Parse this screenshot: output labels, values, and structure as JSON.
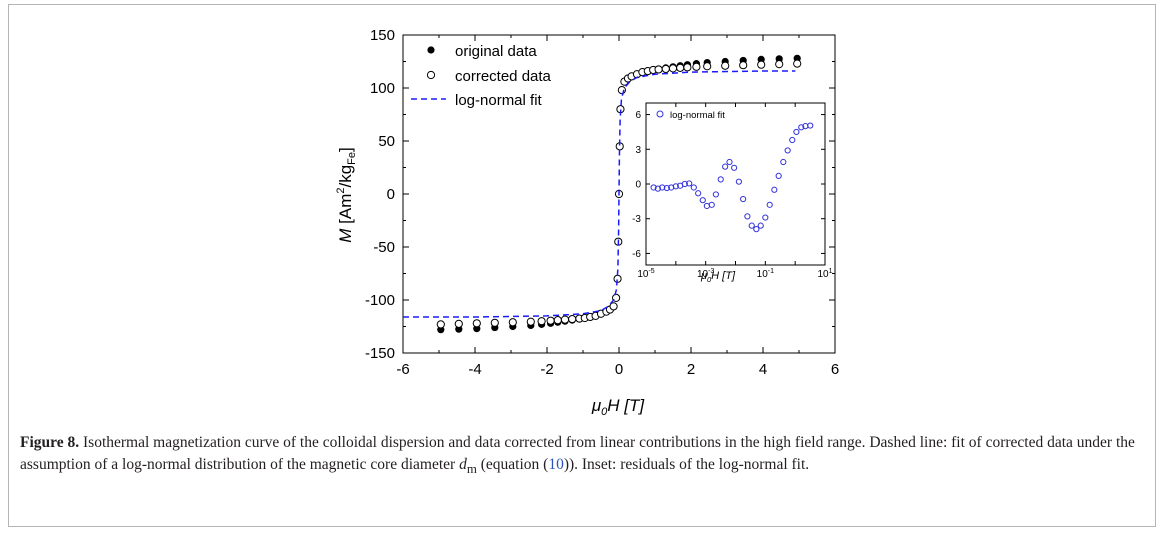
{
  "chart_data": {
    "type": "scatter",
    "xlim": [
      -6,
      6
    ],
    "ylim": [
      -150,
      150
    ],
    "xticks": [
      "-6",
      "-4",
      "-2",
      "0",
      "2",
      "4",
      "6"
    ],
    "yticks": [
      "-150",
      "-100",
      "-50",
      "0",
      "50",
      "100",
      "150"
    ],
    "xlabel": {
      "sym": "μ",
      "sub": "0",
      "rest": "H [T]"
    },
    "ylabel": {
      "sym": "M",
      "rest1": " [Am",
      "sup": "2",
      "rest2": "/kg",
      "sub": "Fe",
      "rest3": "]"
    },
    "legend_position": "top-left",
    "series": [
      {
        "name": "original data",
        "marker": "filled-circle",
        "color": "#000000",
        "x": [
          -4.95,
          -4.45,
          -3.95,
          -3.45,
          -2.95,
          -2.45,
          -2.15,
          -1.9,
          -1.7,
          -1.5,
          -1.3,
          -1.1,
          -0.95,
          -0.8,
          -0.65,
          -0.5,
          -0.35,
          -0.25,
          -0.15,
          -0.08,
          -0.04,
          -0.02,
          0,
          0.02,
          0.04,
          0.08,
          0.15,
          0.25,
          0.35,
          0.5,
          0.65,
          0.8,
          0.95,
          1.1,
          1.3,
          1.5,
          1.7,
          1.9,
          2.15,
          2.45,
          2.95,
          3.45,
          3.95,
          4.45,
          4.95
        ],
        "y": [
          -128,
          -127.5,
          -127,
          -126,
          -125,
          -124,
          -123,
          -122,
          -121,
          -120,
          -119,
          -118,
          -117,
          -116,
          -115,
          -113,
          -111,
          -109,
          -106,
          -98,
          -80,
          -45,
          0,
          45,
          80,
          98,
          106,
          109,
          111,
          113,
          115,
          116,
          117,
          118,
          119,
          120,
          121,
          122,
          123,
          124,
          125,
          126,
          127,
          127.5,
          128
        ]
      },
      {
        "name": "corrected data",
        "marker": "open-circle",
        "color": "#000000",
        "x": [
          -4.95,
          -4.45,
          -3.95,
          -3.45,
          -2.95,
          -2.45,
          -2.15,
          -1.9,
          -1.7,
          -1.5,
          -1.3,
          -1.1,
          -0.95,
          -0.8,
          -0.65,
          -0.5,
          -0.35,
          -0.25,
          -0.15,
          -0.08,
          -0.04,
          -0.02,
          0,
          0.02,
          0.04,
          0.08,
          0.15,
          0.25,
          0.35,
          0.5,
          0.65,
          0.8,
          0.95,
          1.1,
          1.3,
          1.5,
          1.7,
          1.9,
          2.15,
          2.45,
          2.95,
          3.45,
          3.95,
          4.45,
          4.95
        ],
        "y": [
          -123,
          -122.5,
          -122,
          -121.5,
          -121,
          -120.5,
          -120,
          -119.5,
          -119,
          -118.5,
          -118,
          -117.5,
          -117,
          -116,
          -115,
          -113,
          -111,
          -109,
          -106,
          -98,
          -80,
          -45,
          0,
          45,
          80,
          98,
          106,
          109,
          111,
          113,
          115,
          116,
          117,
          117.5,
          118,
          118.5,
          119,
          119.5,
          120,
          120.5,
          121,
          121.5,
          122,
          122.5,
          123
        ]
      },
      {
        "name": "log-normal fit",
        "style": "dashed",
        "color": "#1a1aff",
        "x": [
          -6,
          -4,
          -2,
          -1,
          -0.5,
          -0.3,
          -0.15,
          -0.07,
          -0.03,
          -0.01,
          0,
          0.01,
          0.03,
          0.07,
          0.15,
          0.3,
          0.5,
          1,
          2,
          4,
          4.9
        ],
        "y": [
          -116,
          -116,
          -115,
          -113,
          -110,
          -106,
          -100,
          -90,
          -70,
          -35,
          0,
          35,
          70,
          90,
          100,
          106,
          110,
          113,
          115,
          116,
          116
        ]
      }
    ],
    "inset": {
      "type": "scatter",
      "xscale": "log",
      "xlim": [
        1e-05,
        10
      ],
      "ylim": [
        -7,
        7
      ],
      "yticks": [
        "6",
        "3",
        "0",
        "-3",
        "-6"
      ],
      "xticks": [
        {
          "base": "10",
          "exp": "-5",
          "value": 1e-05
        },
        {
          "base": "10",
          "exp": "-3",
          "value": 0.001
        },
        {
          "base": "10",
          "exp": "-1",
          "value": 0.1
        },
        {
          "base": "10",
          "exp": "1",
          "value": 10
        }
      ],
      "xlabel": {
        "sym": "μ",
        "sub": "0",
        "rest": "H [T]"
      },
      "legend_position": "top-left",
      "series": {
        "name": "log-normal fit",
        "marker": "open-circle",
        "color": "#3333dd",
        "x": [
          1.8e-05,
          2.5e-05,
          3.5e-05,
          5e-05,
          7e-05,
          0.0001,
          0.00014,
          0.0002,
          0.00028,
          0.0004,
          0.00056,
          0.0008,
          0.0011,
          0.0016,
          0.0022,
          0.0032,
          0.0045,
          0.0063,
          0.009,
          0.013,
          0.018,
          0.025,
          0.035,
          0.05,
          0.07,
          0.1,
          0.14,
          0.2,
          0.28,
          0.4,
          0.56,
          0.8,
          1.1,
          1.6,
          2.2,
          3.2
        ],
        "y": [
          -0.3,
          -0.4,
          -0.3,
          -0.35,
          -0.3,
          -0.2,
          -0.15,
          0,
          0.05,
          -0.3,
          -0.8,
          -1.4,
          -1.9,
          -1.8,
          -0.9,
          0.4,
          1.5,
          1.9,
          1.4,
          0.2,
          -1.3,
          -2.8,
          -3.6,
          -3.9,
          -3.6,
          -2.9,
          -1.8,
          -0.5,
          0.7,
          1.9,
          2.9,
          3.8,
          4.5,
          4.9,
          5.0,
          5.05
        ]
      }
    }
  },
  "caption": {
    "lead": "Figure 8.",
    "text1": " Isothermal magnetization curve of the colloidal dispersion and data corrected from linear contributions in the high field range. Dashed line: fit of corrected data under the assumption of a log-normal distribution of the magnetic core diameter ",
    "dm_sym": "d",
    "dm_sub": "m",
    "text2": " (equation (",
    "eq_ref": "10",
    "text3": ")). Inset: residuals of the log-normal fit."
  }
}
